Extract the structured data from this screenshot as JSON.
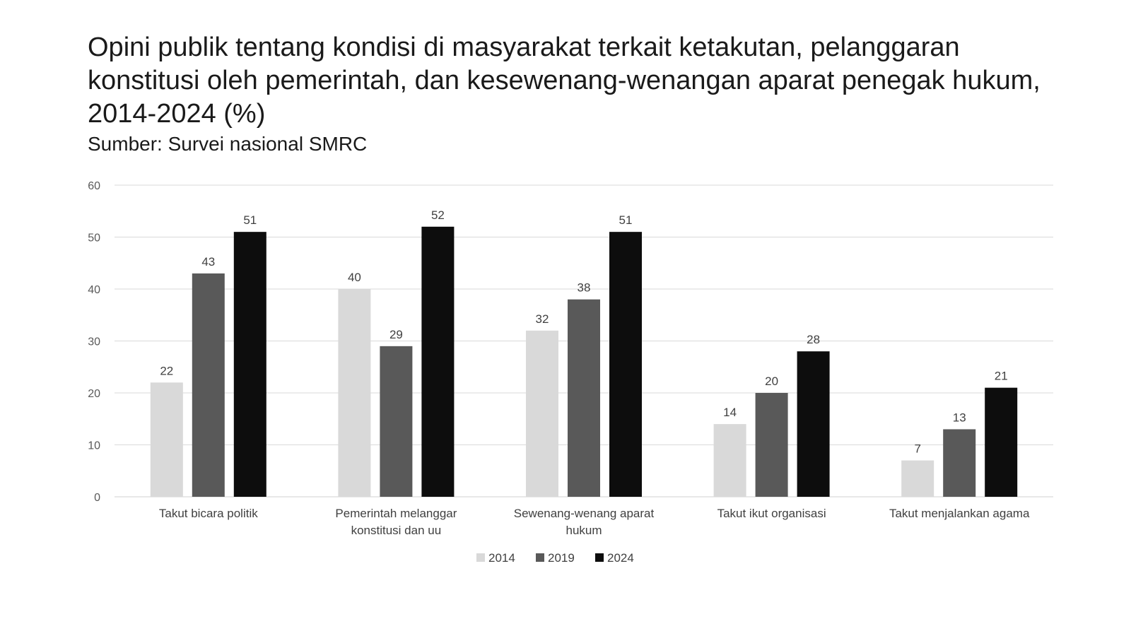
{
  "chart_data": {
    "type": "bar",
    "title": "Opini publik tentang kondisi di masyarakat terkait ketakutan, pelanggaran konstitusi oleh pemerintah, dan kesewenang-wenangan aparat penegak hukum, 2014-2024 (%)",
    "subtitle": "Sumber: Survei nasional SMRC",
    "categories": [
      [
        "Takut bicara politik"
      ],
      [
        "Pemerintah melanggar",
        "konstitusi dan uu"
      ],
      [
        "Sewenang-wenang aparat",
        "hukum"
      ],
      [
        "Takut ikut organisasi"
      ],
      [
        "Takut menjalankan agama"
      ]
    ],
    "series": [
      {
        "name": "2014",
        "color": "#d9d9d9",
        "values": [
          22,
          40,
          32,
          14,
          7
        ]
      },
      {
        "name": "2019",
        "color": "#595959",
        "values": [
          43,
          29,
          38,
          20,
          13
        ]
      },
      {
        "name": "2024",
        "color": "#0d0d0d",
        "values": [
          51,
          52,
          51,
          28,
          21
        ]
      }
    ],
    "ylim": [
      0,
      60
    ],
    "yticks": [
      0,
      10,
      20,
      30,
      40,
      50,
      60
    ],
    "xlabel": "",
    "ylabel": "",
    "grid": true,
    "legend": "bottom-center"
  }
}
